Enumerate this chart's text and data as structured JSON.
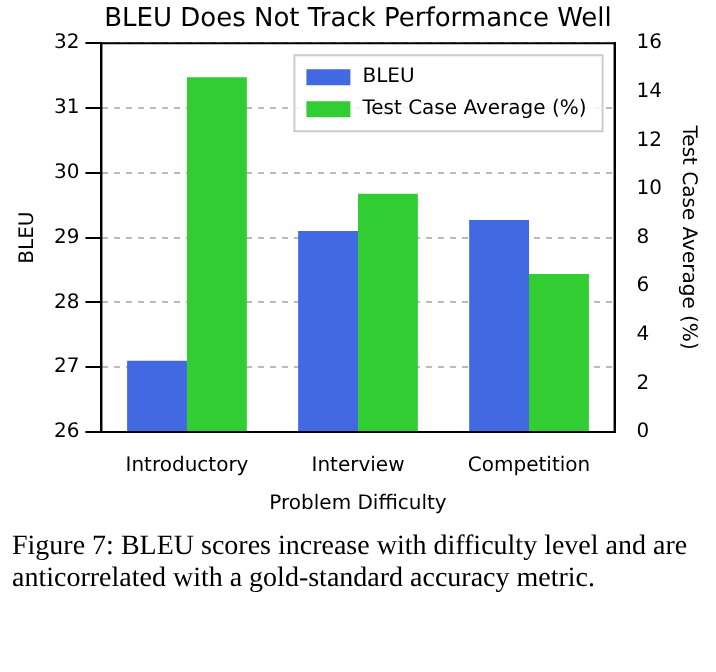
{
  "chart_data": {
    "type": "bar",
    "title": "BLEU Does Not Track Performance Well",
    "xlabel": "Problem Difficulty",
    "ylabel": "BLEU",
    "y2label": "Test Case Average (%)",
    "categories": [
      "Introductory",
      "Interview",
      "Competition"
    ],
    "series": [
      {
        "name": "BLEU",
        "color": "#4169e1",
        "values": [
          27.1,
          29.1,
          29.27
        ]
      },
      {
        "name": "Test Case Average (%)",
        "color": "#32cd32",
        "values": [
          14.6,
          9.8,
          6.5
        ],
        "axis": "y2"
      }
    ],
    "ylim": [
      26,
      32
    ],
    "yticks": [
      26,
      27,
      28,
      29,
      30,
      31,
      32
    ],
    "y2lim": [
      0,
      16
    ],
    "y2ticks": [
      0,
      2,
      4,
      6,
      8,
      10,
      12,
      14,
      16
    ],
    "grid": "y",
    "legend": "top right",
    "annotations": [
      "Figure 7: BLEU scores increase with difficulty level and are anticorrelated with a gold-standard accuracy metric."
    ]
  }
}
